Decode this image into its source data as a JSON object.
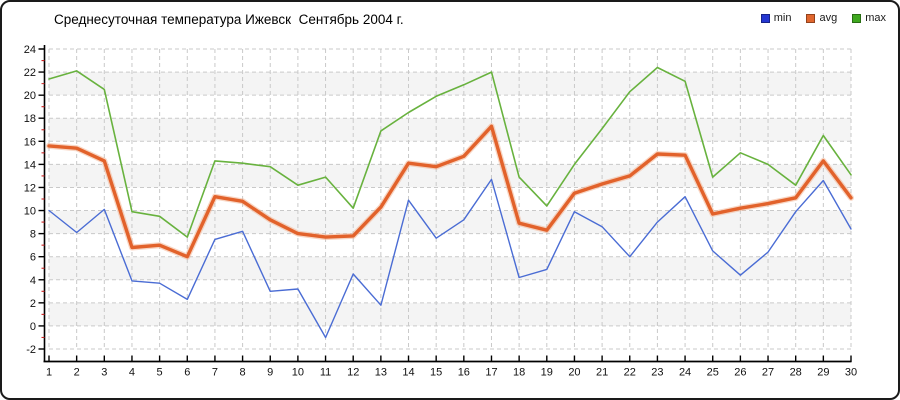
{
  "title": "Среднесуточная температура Ижевск  Сентябрь 2004 г.",
  "legend": [
    {
      "label": "min",
      "color": "#2436d1"
    },
    {
      "label": "avg",
      "color": "#e0662d"
    },
    {
      "label": "max",
      "color": "#3fa81f"
    }
  ],
  "colors": {
    "grid": "#c9c9c9",
    "band": "#f4f4f4",
    "axis": "#000000",
    "minor_tick": "#cc2222",
    "tick_label": "#111111"
  },
  "chart_data": {
    "type": "line",
    "title": "Среднесуточная температура Ижевск  Сентябрь 2004 г.",
    "x": [
      1,
      2,
      3,
      4,
      5,
      6,
      7,
      8,
      9,
      10,
      11,
      12,
      13,
      14,
      15,
      16,
      17,
      18,
      19,
      20,
      21,
      22,
      23,
      24,
      25,
      26,
      27,
      28,
      29,
      30
    ],
    "series": [
      {
        "name": "min",
        "color": "#4a6cd4",
        "width": 1.4,
        "values": [
          10.0,
          8.1,
          10.1,
          3.9,
          3.7,
          2.3,
          7.5,
          8.2,
          3.0,
          3.2,
          -1.0,
          4.5,
          1.8,
          10.9,
          7.6,
          9.2,
          12.7,
          4.2,
          4.9,
          9.9,
          8.6,
          6.0,
          9.0,
          11.2,
          6.5,
          4.4,
          6.4,
          9.9,
          12.6,
          8.4
        ]
      },
      {
        "name": "avg",
        "color": "#e2622b",
        "halo": "#f2b493",
        "width": 3.4,
        "values": [
          15.6,
          15.4,
          14.3,
          6.8,
          7.0,
          6.0,
          11.2,
          10.8,
          9.2,
          8.0,
          7.7,
          7.8,
          10.3,
          14.1,
          13.8,
          14.7,
          17.3,
          8.9,
          8.3,
          11.5,
          12.3,
          13.0,
          14.9,
          14.8,
          9.7,
          10.2,
          10.6,
          11.1,
          14.3,
          11.1
        ]
      },
      {
        "name": "max",
        "color": "#68b23e",
        "width": 1.6,
        "values": [
          21.4,
          22.1,
          20.5,
          9.9,
          9.5,
          7.7,
          14.3,
          14.1,
          13.8,
          12.2,
          12.9,
          10.2,
          16.9,
          18.5,
          19.9,
          20.9,
          22.0,
          12.9,
          10.4,
          14.0,
          17.1,
          20.3,
          22.4,
          21.2,
          12.9,
          15.0,
          14.0,
          12.2,
          16.5,
          13.1
        ]
      }
    ],
    "xlabel": "",
    "ylabel": "",
    "ylim": [
      -2,
      24
    ],
    "yticks": [
      -2,
      0,
      2,
      4,
      6,
      8,
      10,
      12,
      14,
      16,
      18,
      20,
      22,
      24
    ],
    "grid": true,
    "legend_position": "top-right"
  }
}
